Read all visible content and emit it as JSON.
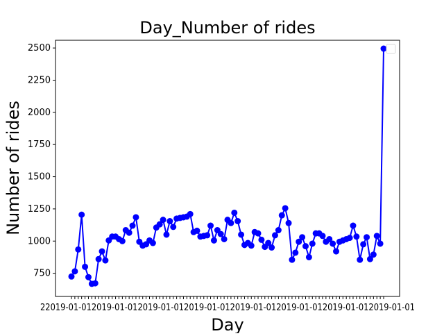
{
  "chart_data": {
    "type": "line",
    "title": "Day_Number of rides",
    "xlabel": "Day",
    "ylabel": "Number of rides",
    "ylim": [
      570,
      2560
    ],
    "y_ticks": [
      750,
      1000,
      1250,
      1500,
      1750,
      2000,
      2250,
      2500
    ],
    "grid": false,
    "legend": {
      "placement": "top-right",
      "entries": []
    },
    "x_tick_labels_note": "dense overlapping day labels",
    "series": [
      {
        "values": [
          725,
          765,
          935,
          1205,
          800,
          720,
          668,
          672,
          860,
          920,
          850,
          1005,
          1035,
          1035,
          1015,
          1000,
          1085,
          1065,
          1120,
          1185,
          995,
          965,
          975,
          1005,
          985,
          1105,
          1130,
          1165,
          1050,
          1155,
          1110,
          1175,
          1180,
          1185,
          1190,
          1210,
          1070,
          1080,
          1035,
          1040,
          1045,
          1120,
          1005,
          1085,
          1055,
          1015,
          1165,
          1140,
          1220,
          1155,
          1050,
          970,
          985,
          965,
          1070,
          1060,
          1010,
          955,
          985,
          950,
          1045,
          1085,
          1200,
          1255,
          1140,
          855,
          910,
          995,
          1030,
          960,
          875,
          980,
          1060,
          1060,
          1040,
          995,
          1015,
          980,
          920,
          995,
          1005,
          1015,
          1025,
          1120,
          1035,
          855,
          975,
          1030,
          860,
          895,
          1040,
          980,
          2495
        ],
        "color": "#0000ff",
        "marker": "circle"
      }
    ]
  }
}
